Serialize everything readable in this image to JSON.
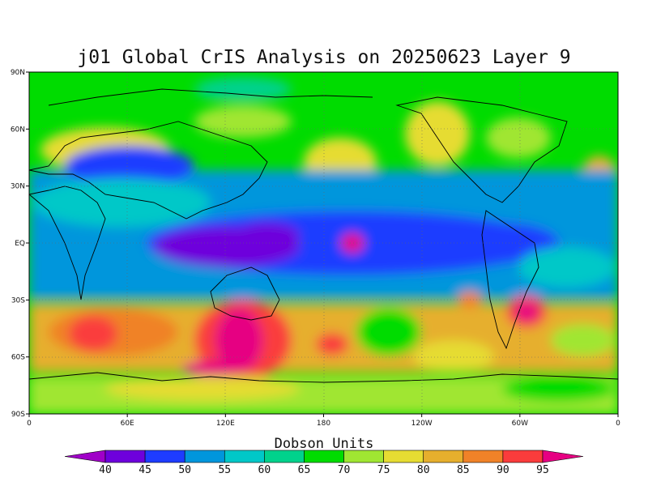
{
  "chart_data": {
    "type": "heatmap",
    "title": "j01 Global CrIS Analysis on 20250623 Layer 9",
    "projection": "cylindrical equidistant, longitude 0 to 360",
    "x_ticks": [
      "0",
      "60E",
      "120E",
      "180",
      "120W",
      "60W",
      "0"
    ],
    "y_ticks": [
      "90N",
      "60N",
      "30N",
      "EQ",
      "30S",
      "60S",
      "90S"
    ],
    "colorbar": {
      "title": "Dobson Units",
      "levels": [
        40,
        45,
        50,
        55,
        60,
        65,
        70,
        75,
        80,
        85,
        90,
        95
      ],
      "colors": [
        "#a000c8",
        "#6e00dc",
        "#1e3cff",
        "#0096dc",
        "#00c8c8",
        "#00d28c",
        "#00dc00",
        "#a0e632",
        "#e6dc32",
        "#e6af2d",
        "#f08228",
        "#fa3c3c",
        "#e60082"
      ]
    },
    "grid": true,
    "features": [
      {
        "name": "equatorial low band",
        "region": "20S-20N",
        "approx_value": 45
      },
      {
        "name": "Indian Ocean high",
        "region": "40S-55S, 20E-45E",
        "approx_value": 95
      },
      {
        "name": "Southern Australia high",
        "region": "35S-70S, 80E-140E",
        "approx_value": 95
      },
      {
        "name": "South Atlantic high",
        "region": "30S-45S, 50W-60W",
        "approx_value": 95
      },
      {
        "name": "Antarctic band",
        "region": "south of 70S",
        "approx_value": 75
      }
    ]
  }
}
